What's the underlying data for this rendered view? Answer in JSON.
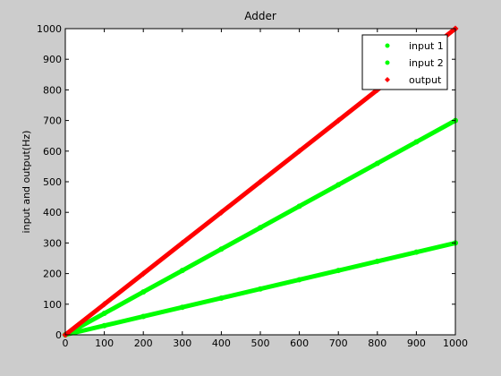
{
  "chart_data": {
    "type": "scatter",
    "title": "Adder",
    "xlabel": "",
    "ylabel": "input and output(Hz)",
    "xlim": [
      0,
      1000
    ],
    "ylim": [
      0,
      1000
    ],
    "xticks": [
      0,
      100,
      200,
      300,
      400,
      500,
      600,
      700,
      800,
      900,
      1000
    ],
    "yticks": [
      0,
      100,
      200,
      300,
      400,
      500,
      600,
      700,
      800,
      900,
      1000
    ],
    "grid": false,
    "legend": "top-right",
    "x": [
      0,
      100,
      200,
      300,
      400,
      500,
      600,
      700,
      800,
      900,
      1000
    ],
    "series": [
      {
        "name": "input 1",
        "color": "#00ff00",
        "marker": "dot",
        "values": [
          0,
          30,
          60,
          90,
          120,
          150,
          180,
          210,
          240,
          270,
          300
        ]
      },
      {
        "name": "input 2",
        "color": "#00ff00",
        "marker": "dot",
        "values": [
          0,
          70,
          140,
          210,
          280,
          350,
          420,
          490,
          560,
          630,
          700
        ]
      },
      {
        "name": "output",
        "color": "#ff0000",
        "marker": "diamond",
        "values": [
          0,
          100,
          200,
          300,
          400,
          500,
          600,
          700,
          800,
          900,
          1000
        ]
      }
    ]
  }
}
